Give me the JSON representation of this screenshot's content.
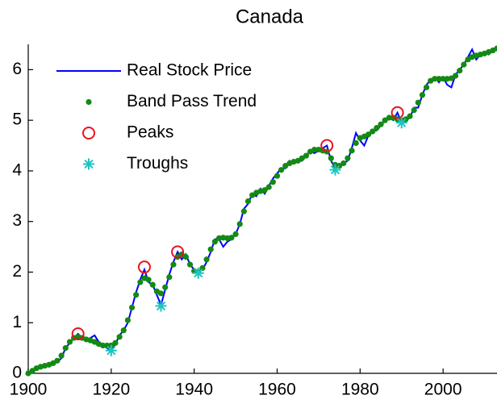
{
  "chart_data": {
    "type": "line",
    "title": "Canada",
    "x": [
      1900,
      1901,
      1902,
      1903,
      1904,
      1905,
      1906,
      1907,
      1908,
      1909,
      1910,
      1911,
      1912,
      1913,
      1914,
      1915,
      1916,
      1917,
      1918,
      1919,
      1920,
      1921,
      1922,
      1923,
      1924,
      1925,
      1926,
      1927,
      1928,
      1929,
      1930,
      1931,
      1932,
      1933,
      1934,
      1935,
      1936,
      1937,
      1938,
      1939,
      1940,
      1941,
      1942,
      1943,
      1944,
      1945,
      1946,
      1947,
      1948,
      1949,
      1950,
      1951,
      1952,
      1953,
      1954,
      1955,
      1956,
      1957,
      1958,
      1959,
      1960,
      1961,
      1962,
      1963,
      1964,
      1965,
      1966,
      1967,
      1968,
      1969,
      1970,
      1971,
      1972,
      1973,
      1974,
      1975,
      1976,
      1977,
      1978,
      1979,
      1980,
      1981,
      1982,
      1983,
      1984,
      1985,
      1986,
      1987,
      1988,
      1989,
      1990,
      1991,
      1992,
      1993,
      1994,
      1995,
      1996,
      1997,
      1998,
      1999,
      2000,
      2001,
      2002,
      2003,
      2004,
      2005,
      2006,
      2007,
      2008,
      2009,
      2010,
      2011,
      2012,
      2013
    ],
    "series": [
      {
        "name": "Real Stock Price",
        "color": "#0000ff",
        "marker": "line",
        "values": [
          0.0,
          0.05,
          0.1,
          0.12,
          0.15,
          0.15,
          0.2,
          0.22,
          0.3,
          0.5,
          0.6,
          0.7,
          0.78,
          0.7,
          0.65,
          0.7,
          0.75,
          0.62,
          0.55,
          0.5,
          0.45,
          0.58,
          0.75,
          0.85,
          1.0,
          1.3,
          1.6,
          1.85,
          2.05,
          1.8,
          1.75,
          1.55,
          1.35,
          1.65,
          1.95,
          2.2,
          2.4,
          2.25,
          2.35,
          2.15,
          2.05,
          2.0,
          2.05,
          2.2,
          2.4,
          2.65,
          2.65,
          2.5,
          2.6,
          2.65,
          2.75,
          2.95,
          3.25,
          3.35,
          3.55,
          3.5,
          3.65,
          3.55,
          3.7,
          3.85,
          3.95,
          4.05,
          4.05,
          4.2,
          4.15,
          4.2,
          4.2,
          4.3,
          4.4,
          4.35,
          4.4,
          4.45,
          4.5,
          4.2,
          4.05,
          4.1,
          4.15,
          4.2,
          4.45,
          4.75,
          4.6,
          4.5,
          4.7,
          4.8,
          4.8,
          4.9,
          5.0,
          5.05,
          5.0,
          5.15,
          4.95,
          5.0,
          5.05,
          5.25,
          5.25,
          5.5,
          5.7,
          5.8,
          5.85,
          5.75,
          5.85,
          5.7,
          5.65,
          5.9,
          6.0,
          6.1,
          6.25,
          6.4,
          6.2,
          6.3,
          6.35,
          6.3,
          6.4,
          6.45
        ]
      },
      {
        "name": "Band Pass Trend",
        "color": "#138a13",
        "marker": "dot",
        "values": [
          0.0,
          0.05,
          0.1,
          0.13,
          0.15,
          0.17,
          0.2,
          0.25,
          0.35,
          0.5,
          0.62,
          0.7,
          0.72,
          0.7,
          0.67,
          0.65,
          0.62,
          0.58,
          0.55,
          0.55,
          0.55,
          0.6,
          0.72,
          0.85,
          1.05,
          1.3,
          1.55,
          1.8,
          1.88,
          1.85,
          1.75,
          1.62,
          1.58,
          1.7,
          1.9,
          2.15,
          2.3,
          2.35,
          2.3,
          2.15,
          2.02,
          2.0,
          2.08,
          2.25,
          2.45,
          2.6,
          2.67,
          2.68,
          2.67,
          2.68,
          2.75,
          2.95,
          3.2,
          3.4,
          3.52,
          3.57,
          3.6,
          3.62,
          3.68,
          3.78,
          3.9,
          4.02,
          4.1,
          4.15,
          4.18,
          4.2,
          4.25,
          4.3,
          4.38,
          4.42,
          4.42,
          4.4,
          4.38,
          4.25,
          4.12,
          4.1,
          4.15,
          4.25,
          4.4,
          4.55,
          4.65,
          4.68,
          4.72,
          4.78,
          4.85,
          4.92,
          5.0,
          5.05,
          5.05,
          5.02,
          5.0,
          5.02,
          5.08,
          5.2,
          5.35,
          5.5,
          5.65,
          5.78,
          5.82,
          5.82,
          5.82,
          5.82,
          5.83,
          5.88,
          5.98,
          6.1,
          6.2,
          6.25,
          6.28,
          6.3,
          6.32,
          6.35,
          6.38,
          6.42
        ]
      },
      {
        "name": "Peaks",
        "color": "#e8141e",
        "marker": "circle",
        "x": [
          1912,
          1928,
          1936,
          1972,
          1989
        ],
        "values": [
          0.78,
          2.1,
          2.4,
          4.5,
          5.15
        ]
      },
      {
        "name": "Troughs",
        "color": "#1fc3c3",
        "marker": "star",
        "x": [
          1920,
          1932,
          1941,
          1974,
          1990
        ],
        "values": [
          0.45,
          1.33,
          1.98,
          4.02,
          4.95
        ]
      }
    ],
    "xlim": [
      1900,
      2013
    ],
    "xticks": [
      1900,
      1920,
      1940,
      1960,
      1980,
      2000
    ],
    "ylim": [
      0,
      6.5
    ],
    "yticks": [
      0,
      1,
      2,
      3,
      4,
      5,
      6
    ],
    "legend": "upper left"
  }
}
